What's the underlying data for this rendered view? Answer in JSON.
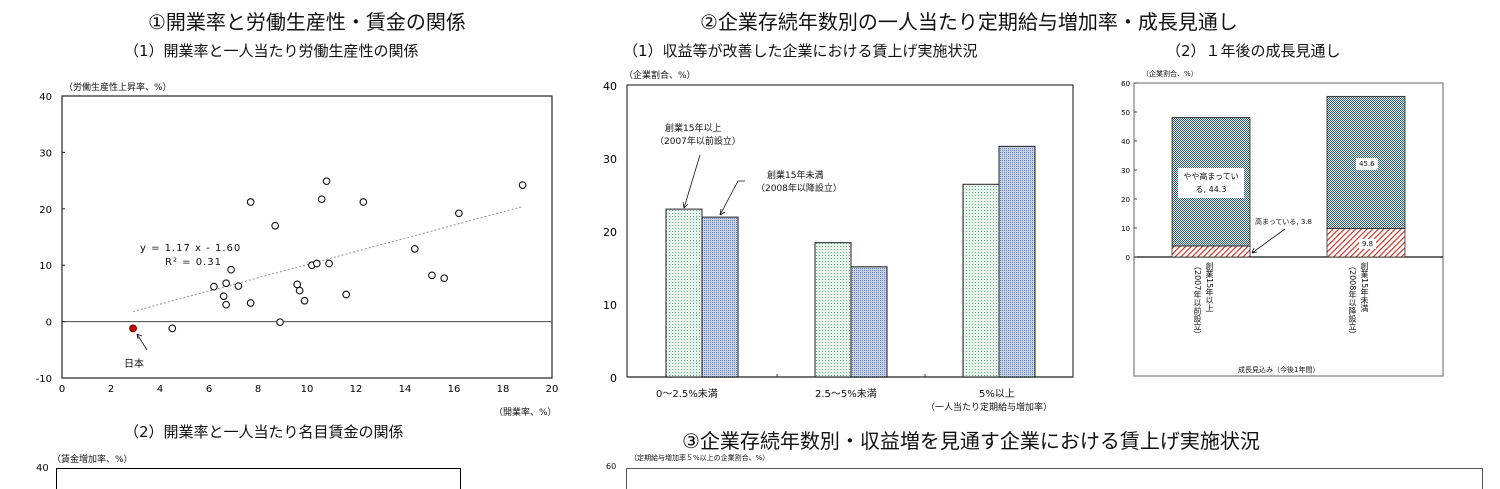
{
  "section1": {
    "title": "①開業率と労働生産性・賃金の関係",
    "sub1": "（1）開業率と一人当たり労働生産性の関係",
    "sub2": "（2）開業率と一人当たり名目賃金の関係",
    "sub2_ylabel": "（賃金増加率、%）",
    "sub2_ytop": "40"
  },
  "section2": {
    "title": "②企業存続年数別の一人当たり定期給与増加率・成長見通し",
    "sub1": "（1）収益等が改善した企業における賃上げ実施状況",
    "sub2": "（2）１年後の成長見通し"
  },
  "section3": {
    "title": "③企業存続年数別・収益増を見通す企業における賃上げ実施状況",
    "ylabel": "（定期給与増加率５%以上の企業割合、%）",
    "ytop": "60"
  },
  "chart_data": [
    {
      "type": "scatter",
      "title": "（1）開業率と一人当たり労働生産性の関係",
      "xlabel": "（開業率、%）",
      "ylabel": "（労働生産性上昇率、%）",
      "xlim": [
        0,
        20
      ],
      "ylim": [
        -10,
        40
      ],
      "xticks": [
        0,
        2,
        4,
        6,
        8,
        10,
        12,
        14,
        16,
        18,
        20
      ],
      "yticks": [
        -10,
        0,
        10,
        20,
        30,
        40
      ],
      "grid": false,
      "trendline": {
        "slope": 1.17,
        "intercept": -1.6,
        "x_range": [
          2.9,
          18.8
        ],
        "equation": "y = 1.17 x - 1.60",
        "r2": "R² = 0.31"
      },
      "highlight": {
        "label": "日本",
        "x": 2.9,
        "y": -1.2,
        "color": "#cc0000"
      },
      "points": [
        {
          "x": 4.5,
          "y": -1.2
        },
        {
          "x": 6.2,
          "y": 6.2
        },
        {
          "x": 6.6,
          "y": 4.5
        },
        {
          "x": 6.7,
          "y": 3.0
        },
        {
          "x": 6.7,
          "y": 6.8
        },
        {
          "x": 6.9,
          "y": 9.2
        },
        {
          "x": 7.2,
          "y": 6.3
        },
        {
          "x": 7.7,
          "y": 3.3
        },
        {
          "x": 7.7,
          "y": 21.2
        },
        {
          "x": 8.7,
          "y": 17.0
        },
        {
          "x": 8.9,
          "y": -0.1
        },
        {
          "x": 9.6,
          "y": 6.6
        },
        {
          "x": 9.7,
          "y": 5.5
        },
        {
          "x": 9.9,
          "y": 3.7
        },
        {
          "x": 10.2,
          "y": 10.0
        },
        {
          "x": 10.4,
          "y": 10.3
        },
        {
          "x": 10.6,
          "y": 21.7
        },
        {
          "x": 10.8,
          "y": 24.9
        },
        {
          "x": 10.9,
          "y": 10.3
        },
        {
          "x": 11.6,
          "y": 4.8
        },
        {
          "x": 12.3,
          "y": 21.2
        },
        {
          "x": 14.4,
          "y": 12.9
        },
        {
          "x": 15.1,
          "y": 8.2
        },
        {
          "x": 15.6,
          "y": 7.7
        },
        {
          "x": 16.2,
          "y": 19.2
        },
        {
          "x": 18.8,
          "y": 24.2
        }
      ]
    },
    {
      "type": "bar",
      "title": "（1）収益等が改善した企業における賃上げ実施状況",
      "ylabel": "（企業割合、%）",
      "xlabel": "（一人当たり定期給与増加率）",
      "ylim": [
        0,
        40
      ],
      "yticks": [
        0,
        10,
        20,
        30,
        40
      ],
      "categories": [
        "0〜2.5%未満",
        "2.5〜5%未満",
        "5%以上"
      ],
      "series": [
        {
          "name": "創業15年以上（2007年以前設立）",
          "values": [
            23.0,
            18.4,
            26.4
          ],
          "color": "#c8e6d4"
        },
        {
          "name": "創業15年未満（2008年以降設立）",
          "values": [
            21.9,
            15.1,
            31.6
          ],
          "color": "#b4c4dc"
        }
      ],
      "annotations": [
        {
          "line1": "創業15年以上",
          "line2": "（2007年以前設立）"
        },
        {
          "line1": "創業15年未満",
          "line2": "（2008年以降設立）"
        }
      ]
    },
    {
      "type": "bar",
      "stacked": true,
      "title": "（2）１年後の成長見通し",
      "ylabel": "（企業割合、%）",
      "xlabel": "成長見込み（今後1年間）",
      "ylim": [
        0,
        60
      ],
      "yticks": [
        0,
        10,
        20,
        30,
        40,
        50,
        60
      ],
      "categories": [
        "創業15年以上（2007年以前設立）",
        "創業15年未満（2008年以降設立）"
      ],
      "category_lines": [
        {
          "a": "創業15年以上",
          "b": "（2007年以前設立）"
        },
        {
          "a": "創業15年未満",
          "b": "（2008年以降設立）"
        }
      ],
      "series": [
        {
          "name": "高まっている",
          "values": [
            3.8,
            9.8
          ],
          "color": "#c0392b"
        },
        {
          "name": "やや高まっている",
          "values": [
            44.3,
            45.6
          ],
          "color": "#3a6a78"
        }
      ],
      "labels": {
        "a_top": "やや高まってい",
        "a_top2": "る, 44.3",
        "a_bottom": "高まっている, 3.8",
        "b_top": "45.6",
        "b_bottom": "9.8"
      }
    }
  ]
}
